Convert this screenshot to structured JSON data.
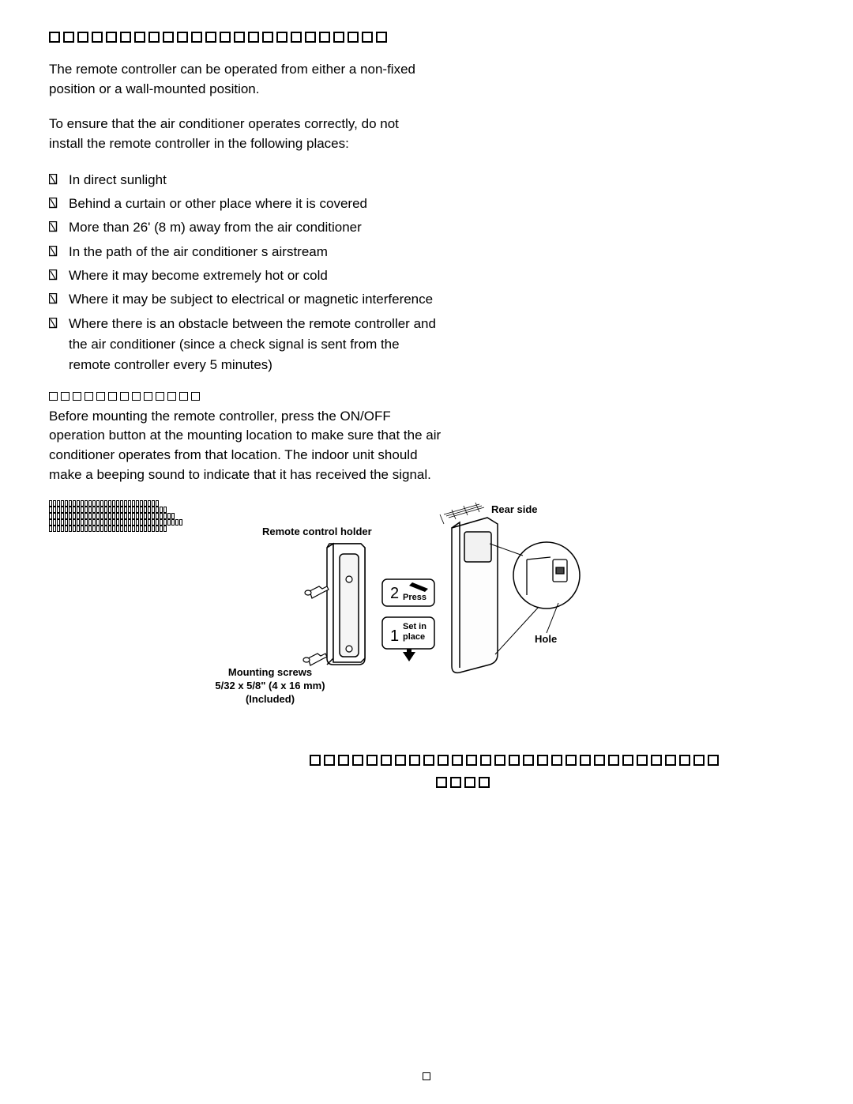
{
  "heading_square_count": 24,
  "intro1": "The remote controller can be operated from either a non-fixed position or a wall-mounted position.",
  "intro2": "To ensure that the air conditioner operates correctly, do not install the remote controller in the following places:",
  "bullets": [
    "In direct sunlight",
    "Behind a curtain or other place where it is covered",
    "More than 26' (8 m) away from the air conditioner",
    "In the path of the air conditioner s airstream",
    "Where it may become extremely hot or cold",
    "Where it may be subject to electrical or magnetic interference",
    "Where there is an obstacle between the remote controller and the air conditioner (since a check signal is sent from the remote controller every 5 minutes)"
  ],
  "subheading_square_count": 13,
  "wall_mount_para": "Before mounting the remote controller, press the ON/OFF operation button at the mounting location to make sure that the air conditioner operates from that location. The indoor unit should make a beeping sound to indicate that it has received the signal.",
  "diagram": {
    "rear_side": "Rear side",
    "holder_label": "Remote control holder",
    "screws_line1": "Mounting screws",
    "screws_line2": "5/32 x 5/8\" (4 x 16 mm)",
    "screws_line3": "(Included)",
    "hole_label": "Hole",
    "step1_num": "1",
    "step1_text1": "Set in",
    "step1_text2": "place",
    "step2_num": "2",
    "step2_text": "Press",
    "removal_block_rows": 5,
    "removal_block_cols_per_row": [
      28,
      30,
      32,
      34,
      30
    ]
  },
  "bottom_row_squares": 29,
  "bottom_row2_squares": 4
}
